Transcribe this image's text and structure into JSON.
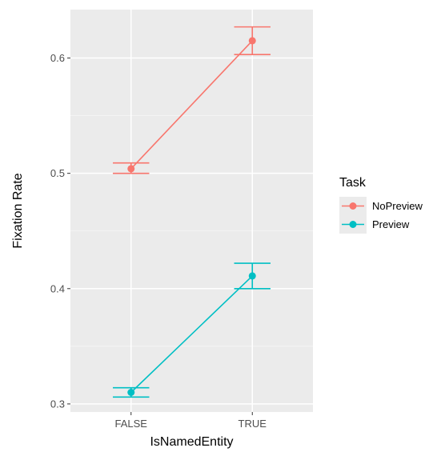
{
  "chart_data": {
    "type": "line",
    "title": "",
    "xlabel": "IsNamedEntity",
    "ylabel": "Fixation Rate",
    "categories": [
      "FALSE",
      "TRUE"
    ],
    "ylim": [
      0.293,
      0.642
    ],
    "yticks": [
      0.3,
      0.4,
      0.5,
      0.6
    ],
    "ytick_labels": [
      "0.3",
      "0.4",
      "0.5",
      "0.6"
    ],
    "grid": true,
    "legend": {
      "title": "Task",
      "position": "right"
    },
    "series": [
      {
        "name": "NoPreview",
        "color": "#F8766D",
        "values": [
          0.504,
          0.615
        ],
        "lower": [
          0.5,
          0.603
        ],
        "upper": [
          0.509,
          0.627
        ]
      },
      {
        "name": "Preview",
        "color": "#00BFC4",
        "values": [
          0.31,
          0.411
        ],
        "lower": [
          0.306,
          0.4
        ],
        "upper": [
          0.314,
          0.422
        ]
      }
    ]
  }
}
